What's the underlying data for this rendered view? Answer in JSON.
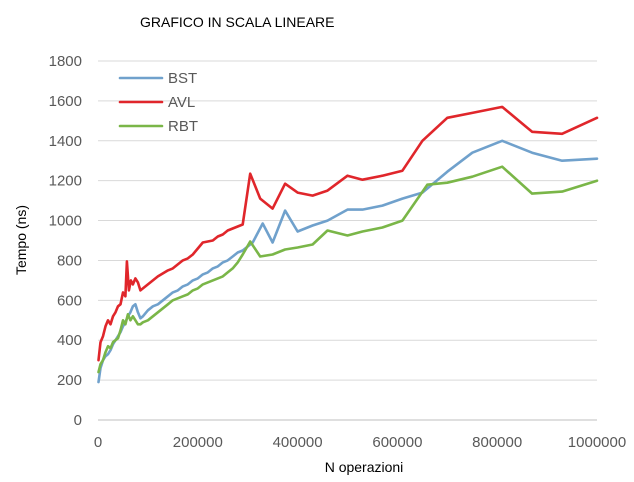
{
  "chart_data": {
    "type": "line",
    "title": "GRAFICO IN SCALA LINEARE",
    "xlabel": "N operazioni",
    "ylabel": "Tempo (ns)",
    "xlim": [
      0,
      1000000
    ],
    "ylim": [
      0,
      1800
    ],
    "x_ticks": [
      0,
      200000,
      400000,
      600000,
      800000,
      1000000
    ],
    "x_tick_labels": [
      "0",
      "200000",
      "400000",
      "600000",
      "800000",
      "1000000"
    ],
    "y_ticks": [
      0,
      200,
      400,
      600,
      800,
      1000,
      1200,
      1400,
      1600,
      1800
    ],
    "y_tick_labels": [
      "0",
      "200",
      "400",
      "600",
      "800",
      "1000",
      "1200",
      "1400",
      "1600",
      "1800"
    ],
    "grid": "horizontal",
    "legend_position": "top-left",
    "series": [
      {
        "name": "BST",
        "color": "#70a1cc",
        "points": [
          [
            1000,
            190
          ],
          [
            5000,
            260
          ],
          [
            10000,
            300
          ],
          [
            15000,
            320
          ],
          [
            20000,
            330
          ],
          [
            25000,
            350
          ],
          [
            30000,
            380
          ],
          [
            35000,
            400
          ],
          [
            40000,
            420
          ],
          [
            45000,
            440
          ],
          [
            50000,
            470
          ],
          [
            55000,
            490
          ],
          [
            60000,
            520
          ],
          [
            65000,
            540
          ],
          [
            70000,
            570
          ],
          [
            75000,
            580
          ],
          [
            80000,
            540
          ],
          [
            85000,
            510
          ],
          [
            90000,
            520
          ],
          [
            100000,
            550
          ],
          [
            110000,
            570
          ],
          [
            120000,
            580
          ],
          [
            130000,
            600
          ],
          [
            140000,
            620
          ],
          [
            150000,
            640
          ],
          [
            160000,
            650
          ],
          [
            170000,
            670
          ],
          [
            180000,
            680
          ],
          [
            190000,
            700
          ],
          [
            200000,
            710
          ],
          [
            210000,
            730
          ],
          [
            220000,
            740
          ],
          [
            230000,
            760
          ],
          [
            240000,
            770
          ],
          [
            250000,
            790
          ],
          [
            260000,
            800
          ],
          [
            270000,
            820
          ],
          [
            280000,
            840
          ],
          [
            290000,
            850
          ],
          [
            300000,
            870
          ],
          [
            310000,
            890
          ],
          [
            330000,
            985
          ],
          [
            350000,
            890
          ],
          [
            375000,
            1050
          ],
          [
            400000,
            945
          ],
          [
            430000,
            975
          ],
          [
            460000,
            1000
          ],
          [
            500000,
            1055
          ],
          [
            530000,
            1055
          ],
          [
            570000,
            1075
          ],
          [
            610000,
            1110
          ],
          [
            650000,
            1140
          ],
          [
            700000,
            1245
          ],
          [
            750000,
            1340
          ],
          [
            810000,
            1400
          ],
          [
            870000,
            1340
          ],
          [
            930000,
            1300
          ],
          [
            1000000,
            1310
          ]
        ]
      },
      {
        "name": "AVL",
        "color": "#e0262b",
        "points": [
          [
            1000,
            300
          ],
          [
            5000,
            390
          ],
          [
            10000,
            420
          ],
          [
            15000,
            470
          ],
          [
            20000,
            500
          ],
          [
            25000,
            480
          ],
          [
            30000,
            520
          ],
          [
            35000,
            540
          ],
          [
            40000,
            570
          ],
          [
            45000,
            580
          ],
          [
            50000,
            640
          ],
          [
            55000,
            620
          ],
          [
            58000,
            795
          ],
          [
            62000,
            650
          ],
          [
            66000,
            700
          ],
          [
            70000,
            680
          ],
          [
            75000,
            710
          ],
          [
            80000,
            690
          ],
          [
            85000,
            650
          ],
          [
            90000,
            660
          ],
          [
            100000,
            680
          ],
          [
            110000,
            700
          ],
          [
            120000,
            720
          ],
          [
            130000,
            735
          ],
          [
            140000,
            750
          ],
          [
            150000,
            760
          ],
          [
            160000,
            780
          ],
          [
            170000,
            800
          ],
          [
            180000,
            810
          ],
          [
            190000,
            830
          ],
          [
            200000,
            860
          ],
          [
            210000,
            890
          ],
          [
            220000,
            895
          ],
          [
            230000,
            900
          ],
          [
            240000,
            920
          ],
          [
            250000,
            930
          ],
          [
            260000,
            950
          ],
          [
            270000,
            960
          ],
          [
            280000,
            970
          ],
          [
            290000,
            980
          ],
          [
            305000,
            1235
          ],
          [
            325000,
            1110
          ],
          [
            350000,
            1060
          ],
          [
            375000,
            1185
          ],
          [
            400000,
            1140
          ],
          [
            430000,
            1125
          ],
          [
            460000,
            1150
          ],
          [
            500000,
            1225
          ],
          [
            530000,
            1205
          ],
          [
            570000,
            1225
          ],
          [
            610000,
            1250
          ],
          [
            650000,
            1400
          ],
          [
            700000,
            1515
          ],
          [
            750000,
            1540
          ],
          [
            810000,
            1570
          ],
          [
            870000,
            1445
          ],
          [
            930000,
            1435
          ],
          [
            1000000,
            1515
          ]
        ]
      },
      {
        "name": "RBT",
        "color": "#7ab648",
        "points": [
          [
            1000,
            240
          ],
          [
            5000,
            280
          ],
          [
            10000,
            300
          ],
          [
            15000,
            340
          ],
          [
            20000,
            370
          ],
          [
            25000,
            360
          ],
          [
            30000,
            390
          ],
          [
            35000,
            400
          ],
          [
            40000,
            410
          ],
          [
            45000,
            450
          ],
          [
            50000,
            500
          ],
          [
            55000,
            480
          ],
          [
            60000,
            530
          ],
          [
            65000,
            500
          ],
          [
            70000,
            520
          ],
          [
            75000,
            500
          ],
          [
            80000,
            480
          ],
          [
            85000,
            480
          ],
          [
            90000,
            490
          ],
          [
            100000,
            500
          ],
          [
            110000,
            520
          ],
          [
            120000,
            540
          ],
          [
            130000,
            560
          ],
          [
            140000,
            580
          ],
          [
            150000,
            600
          ],
          [
            160000,
            610
          ],
          [
            170000,
            620
          ],
          [
            180000,
            630
          ],
          [
            190000,
            650
          ],
          [
            200000,
            660
          ],
          [
            210000,
            680
          ],
          [
            220000,
            690
          ],
          [
            230000,
            700
          ],
          [
            240000,
            710
          ],
          [
            250000,
            720
          ],
          [
            260000,
            740
          ],
          [
            270000,
            760
          ],
          [
            280000,
            790
          ],
          [
            290000,
            830
          ],
          [
            305000,
            895
          ],
          [
            325000,
            820
          ],
          [
            350000,
            830
          ],
          [
            375000,
            855
          ],
          [
            400000,
            865
          ],
          [
            430000,
            880
          ],
          [
            460000,
            950
          ],
          [
            500000,
            925
          ],
          [
            530000,
            945
          ],
          [
            570000,
            965
          ],
          [
            610000,
            1000
          ],
          [
            660000,
            1180
          ],
          [
            700000,
            1190
          ],
          [
            750000,
            1220
          ],
          [
            810000,
            1270
          ],
          [
            870000,
            1135
          ],
          [
            930000,
            1145
          ],
          [
            1000000,
            1200
          ]
        ]
      }
    ]
  }
}
